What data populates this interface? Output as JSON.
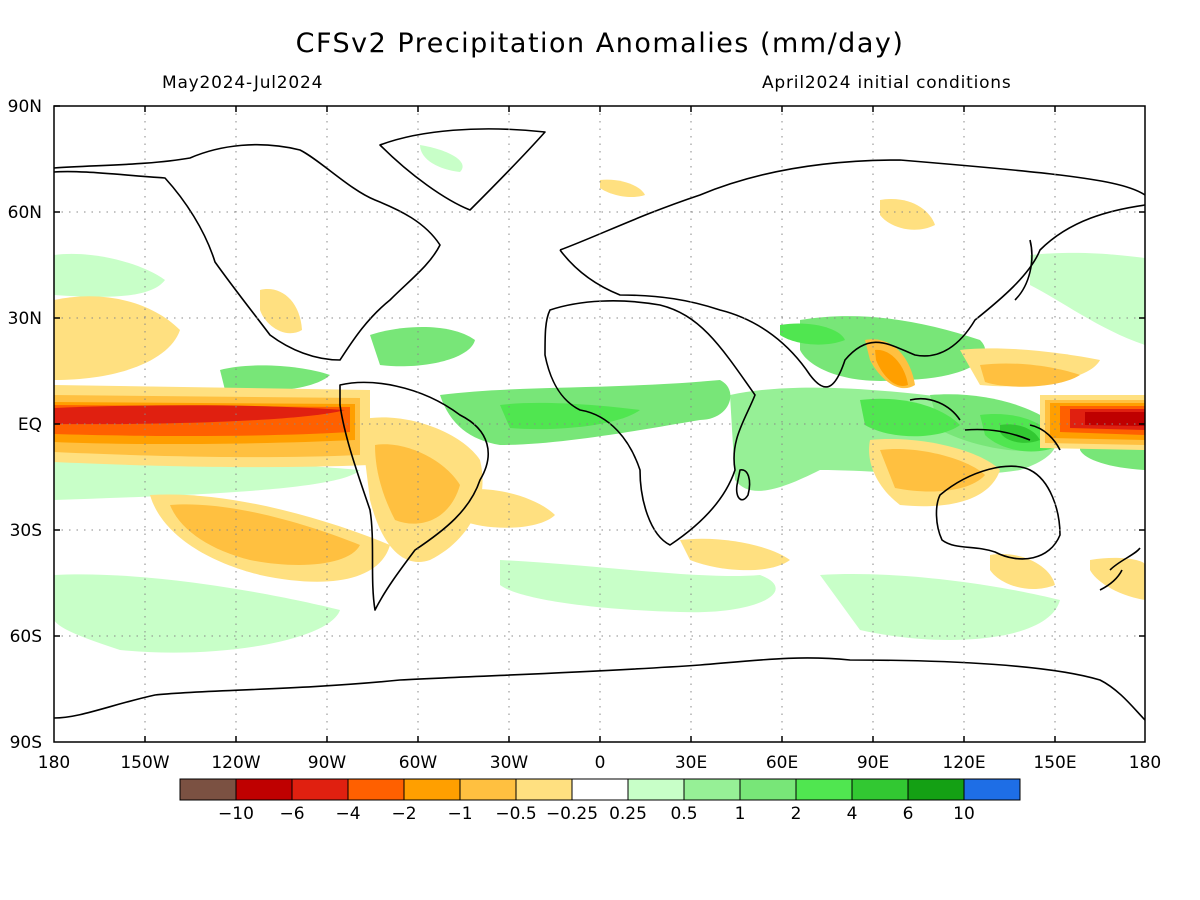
{
  "header": {
    "title": "CFSv2 Precipitation Anomalies (mm/day)",
    "period": "May2024-Jul2024",
    "init": "April2024 initial conditions"
  },
  "map": {
    "lat_ticks": [
      "90N",
      "60N",
      "30N",
      "EQ",
      "30S",
      "60S",
      "90S"
    ],
    "lon_ticks": [
      "180",
      "150W",
      "120W",
      "90W",
      "60W",
      "30W",
      "0",
      "30E",
      "60E",
      "90E",
      "120E",
      "150E",
      "180"
    ],
    "grid": "dotted"
  },
  "colorbar": {
    "colors": [
      "#7b5142",
      "#bf0000",
      "#e02010",
      "#ff6000",
      "#ff9f00",
      "#ffc040",
      "#ffe080",
      "#ffffff",
      "#c8ffc8",
      "#96f096",
      "#78e678",
      "#50e650",
      "#32c832",
      "#14a014",
      "#1e6ee6"
    ],
    "labels": [
      "-10",
      "-6",
      "-4",
      "-2",
      "-1",
      "-0.5",
      "-0.25",
      "0.25",
      "0.5",
      "1",
      "2",
      "4",
      "6",
      "10"
    ]
  }
}
